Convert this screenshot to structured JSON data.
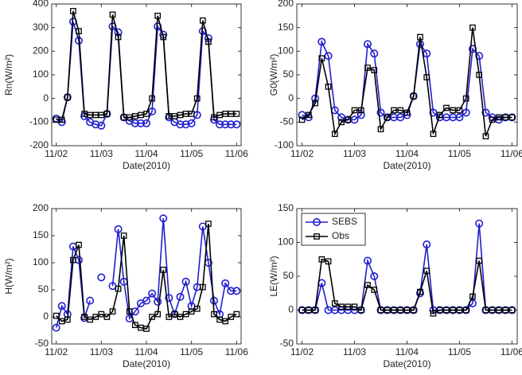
{
  "chart_data": [
    {
      "type": "line",
      "y_label": "Rn(W/m²)",
      "x_label": "Date(2010)",
      "x": [
        2,
        2.125,
        2.25,
        2.375,
        2.5,
        2.625,
        2.75,
        2.875,
        3,
        3.125,
        3.25,
        3.375,
        3.5,
        3.625,
        3.75,
        3.875,
        4,
        4.125,
        4.25,
        4.375,
        4.5,
        4.625,
        4.75,
        4.875,
        5,
        5.125,
        5.25,
        5.375,
        5.5,
        5.625,
        5.75,
        5.875,
        6
      ],
      "xlim": [
        1.9,
        6.1
      ],
      "xticks": [
        {
          "value": 2,
          "label": "11/02"
        },
        {
          "value": 3,
          "label": "11/03"
        },
        {
          "value": 4,
          "label": "11/04"
        },
        {
          "value": 5,
          "label": "11/05"
        },
        {
          "value": 6,
          "label": "11/06"
        }
      ],
      "ylim": [
        -200,
        400
      ],
      "yticks": [
        -200,
        -100,
        0,
        100,
        200,
        300,
        400
      ],
      "series": [
        {
          "color": "#1f1fd0",
          "marker": "circle",
          "values": [
            -85,
            -100,
            5,
            325,
            245,
            -75,
            -100,
            -110,
            -115,
            -65,
            305,
            280,
            -80,
            -95,
            -105,
            -105,
            -105,
            -55,
            305,
            270,
            -80,
            -100,
            -110,
            -110,
            -105,
            -70,
            285,
            255,
            -90,
            -110,
            -110,
            -110,
            -110
          ]
        },
        {
          "color": "#000000",
          "marker": "square",
          "values": [
            -90,
            -90,
            5,
            370,
            285,
            -65,
            -70,
            -70,
            -70,
            -65,
            355,
            260,
            -80,
            -80,
            -75,
            -70,
            -65,
            0,
            350,
            260,
            -75,
            -75,
            -70,
            -65,
            -65,
            0,
            330,
            240,
            -80,
            -70,
            -65,
            -65,
            -65
          ]
        }
      ]
    },
    {
      "type": "line",
      "y_label": "G0(W/m²)",
      "x_label": "Date(2010)",
      "x": [
        2,
        2.125,
        2.25,
        2.375,
        2.5,
        2.625,
        2.75,
        2.875,
        3,
        3.125,
        3.25,
        3.375,
        3.5,
        3.625,
        3.75,
        3.875,
        4,
        4.125,
        4.25,
        4.375,
        4.5,
        4.625,
        4.75,
        4.875,
        5,
        5.125,
        5.25,
        5.375,
        5.5,
        5.625,
        5.75,
        5.875,
        6
      ],
      "xlim": [
        1.9,
        6.1
      ],
      "xticks": [
        {
          "value": 2,
          "label": "11/02"
        },
        {
          "value": 3,
          "label": "11/03"
        },
        {
          "value": 4,
          "label": "11/04"
        },
        {
          "value": 5,
          "label": "11/05"
        },
        {
          "value": 6,
          "label": "11/06"
        }
      ],
      "ylim": [
        -100,
        200
      ],
      "yticks": [
        -100,
        -50,
        0,
        50,
        100,
        150,
        200
      ],
      "series": [
        {
          "color": "#1f1fd0",
          "marker": "circle",
          "values": [
            -35,
            -40,
            0,
            120,
            90,
            -25,
            -40,
            -45,
            -45,
            -35,
            115,
            95,
            -30,
            -40,
            -40,
            -40,
            -35,
            5,
            115,
            95,
            -30,
            -40,
            -40,
            -40,
            -40,
            -30,
            105,
            90,
            -30,
            -40,
            -45,
            -40,
            -40
          ]
        },
        {
          "color": "#000000",
          "marker": "square",
          "values": [
            -45,
            -35,
            -10,
            85,
            25,
            -75,
            -50,
            -45,
            -25,
            -25,
            65,
            60,
            -65,
            -40,
            -25,
            -25,
            -30,
            5,
            130,
            45,
            -75,
            -35,
            -20,
            -25,
            -25,
            0,
            150,
            50,
            -80,
            -45,
            -40,
            -40,
            -40
          ]
        }
      ]
    },
    {
      "type": "line",
      "y_label": "H(W/m²)",
      "x_label": "Date(2010)",
      "x": [
        2,
        2.125,
        2.25,
        2.375,
        2.5,
        2.625,
        2.75,
        2.875,
        3,
        3.125,
        3.25,
        3.375,
        3.5,
        3.625,
        3.75,
        3.875,
        4,
        4.125,
        4.25,
        4.375,
        4.5,
        4.625,
        4.75,
        4.875,
        5,
        5.125,
        5.25,
        5.375,
        5.5,
        5.625,
        5.75,
        5.875,
        6
      ],
      "xlim": [
        1.9,
        6.1
      ],
      "xticks": [
        {
          "value": 2,
          "label": "11/02"
        },
        {
          "value": 3,
          "label": "11/03"
        },
        {
          "value": 4,
          "label": "11/04"
        },
        {
          "value": 5,
          "label": "11/05"
        },
        {
          "value": 6,
          "label": "11/06"
        }
      ],
      "ylim": [
        -50,
        200
      ],
      "yticks": [
        -50,
        0,
        50,
        100,
        150,
        200
      ],
      "series": [
        {
          "color": "#1f1fd0",
          "marker": "circle",
          "values": [
            -20,
            20,
            5,
            130,
            105,
            -2,
            30,
            null,
            73,
            null,
            57,
            162,
            65,
            -3,
            10,
            25,
            30,
            43,
            28,
            182,
            35,
            5,
            37,
            65,
            20,
            55,
            167,
            100,
            30,
            5,
            62,
            48,
            48
          ]
        },
        {
          "color": "#000000",
          "marker": "square",
          "values": [
            2,
            -8,
            -5,
            105,
            133,
            0,
            -5,
            0,
            5,
            0,
            10,
            52,
            150,
            10,
            -15,
            -20,
            -22,
            0,
            5,
            87,
            0,
            5,
            0,
            5,
            10,
            15,
            55,
            172,
            5,
            -5,
            -8,
            0,
            5
          ]
        }
      ]
    },
    {
      "type": "line",
      "y_label": "LE(W/m²)",
      "x_label": "Date(2010)",
      "x": [
        2,
        2.125,
        2.25,
        2.375,
        2.5,
        2.625,
        2.75,
        2.875,
        3,
        3.125,
        3.25,
        3.375,
        3.5,
        3.625,
        3.75,
        3.875,
        4,
        4.125,
        4.25,
        4.375,
        4.5,
        4.625,
        4.75,
        4.875,
        5,
        5.125,
        5.25,
        5.375,
        5.5,
        5.625,
        5.75,
        5.875,
        6
      ],
      "xlim": [
        1.9,
        6.1
      ],
      "xticks": [
        {
          "value": 2,
          "label": "11/02"
        },
        {
          "value": 3,
          "label": "11/03"
        },
        {
          "value": 4,
          "label": "11/04"
        },
        {
          "value": 5,
          "label": "11/05"
        },
        {
          "value": 6,
          "label": "11/06"
        }
      ],
      "ylim": [
        -50,
        150
      ],
      "yticks": [
        -50,
        0,
        50,
        100,
        150
      ],
      "legend": "upper left",
      "series": [
        {
          "name": "SEBS",
          "color": "#1f1fd0",
          "marker": "circle",
          "values": [
            0,
            0,
            0,
            40,
            0,
            0,
            0,
            0,
            0,
            0,
            73,
            50,
            0,
            0,
            0,
            0,
            0,
            0,
            25,
            97,
            0,
            0,
            0,
            0,
            0,
            0,
            10,
            128,
            0,
            0,
            0,
            0,
            0
          ]
        },
        {
          "name": "Obs",
          "color": "#000000",
          "marker": "square",
          "values": [
            0,
            0,
            0,
            75,
            72,
            10,
            5,
            5,
            5,
            0,
            37,
            30,
            0,
            0,
            0,
            0,
            0,
            0,
            27,
            58,
            -5,
            0,
            0,
            0,
            0,
            0,
            20,
            73,
            0,
            0,
            0,
            0,
            0
          ]
        }
      ]
    }
  ]
}
